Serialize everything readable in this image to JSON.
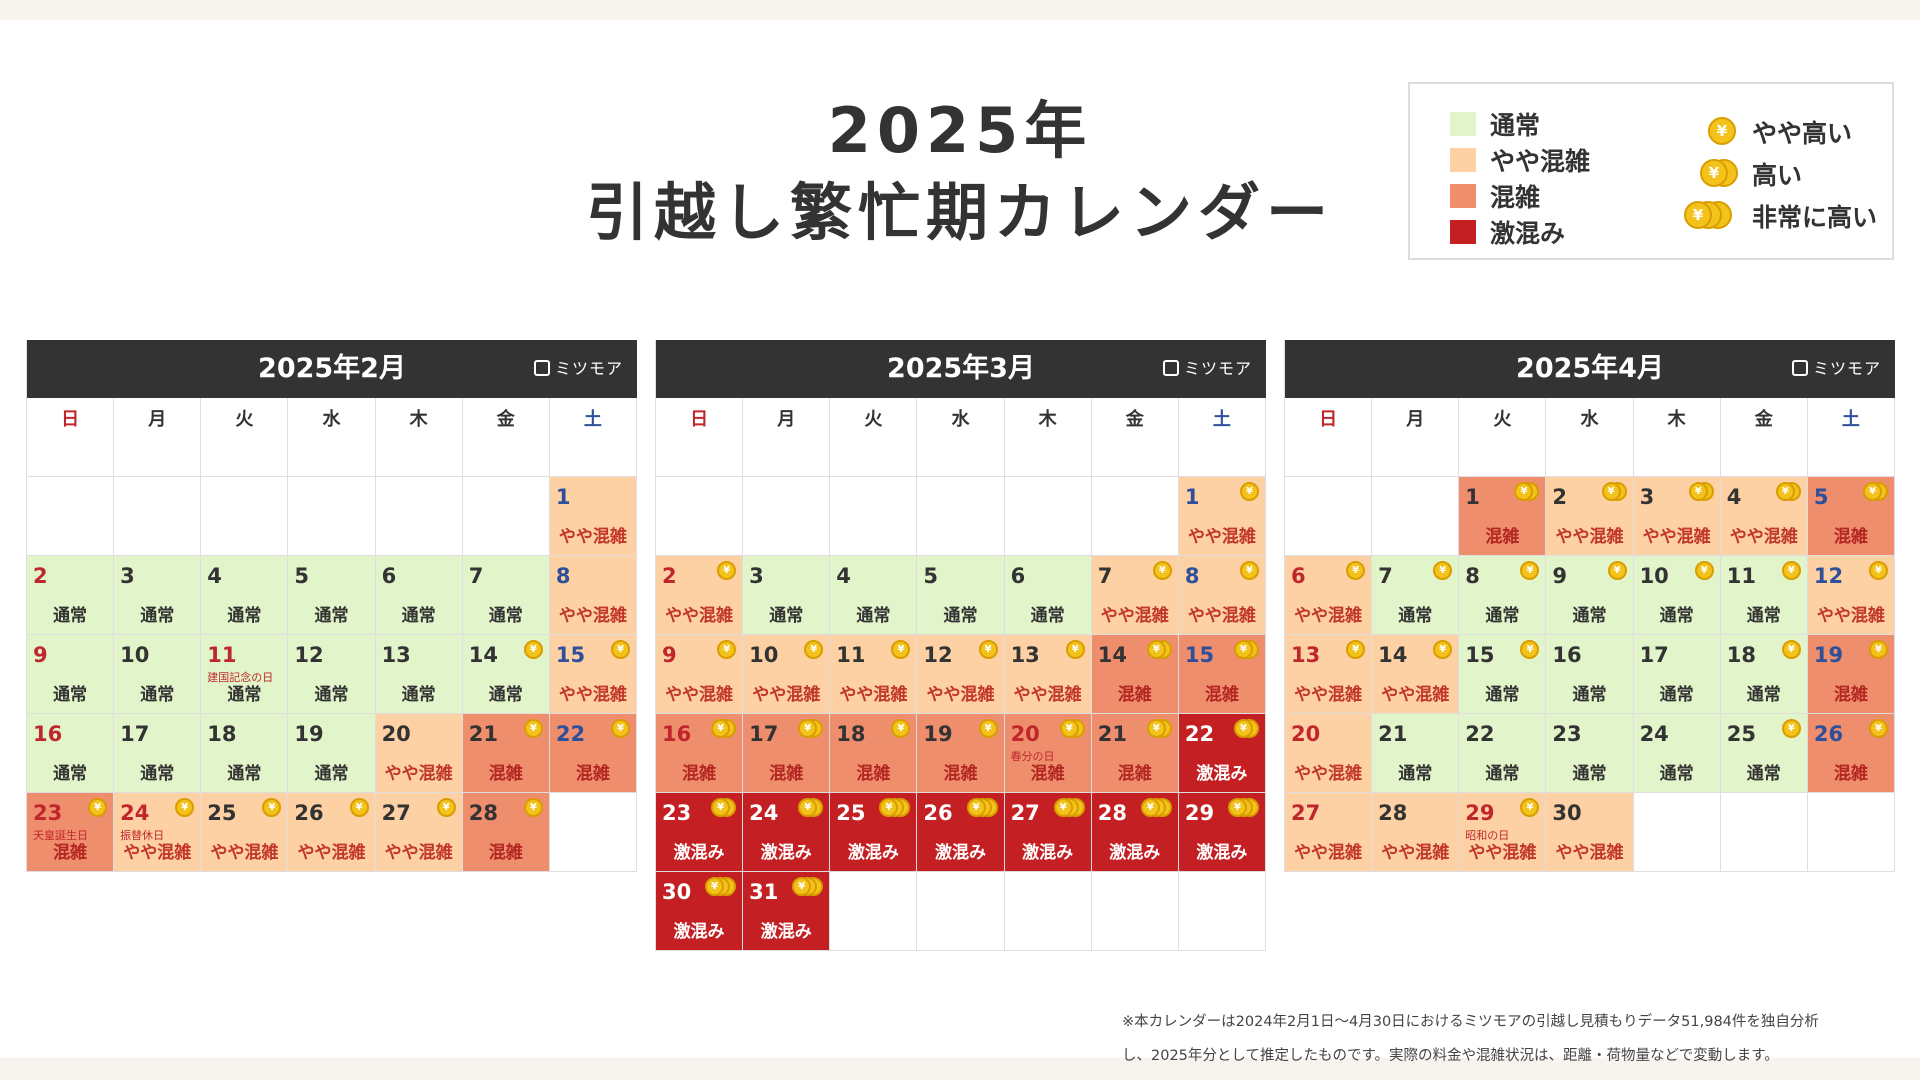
{
  "title": {
    "line1": "2025年",
    "line2": "引越し繁忙期カレンダー"
  },
  "legend": {
    "levels": [
      {
        "label": "通常",
        "color": "#e2f4c9"
      },
      {
        "label": "やや混雑",
        "color": "#fdd1a4"
      },
      {
        "label": "混雑",
        "color": "#ef8e6c"
      },
      {
        "label": "激混み",
        "color": "#c41f22"
      }
    ],
    "prices": [
      {
        "label": "やや高い",
        "coins": 1
      },
      {
        "label": "高い",
        "coins": 2
      },
      {
        "label": "非常に高い",
        "coins": 3
      }
    ],
    "coin_symbol": "¥",
    "coin_color": "#f3c21b"
  },
  "weekdays": [
    "日",
    "月",
    "火",
    "水",
    "木",
    "金",
    "土"
  ],
  "status_labels": {
    "normal": "通常",
    "mild": "やや混雑",
    "busy": "混雑",
    "vbusy": "激混み"
  },
  "calendars": [
    {
      "month": "2025年2月",
      "brand": "ミツモア",
      "first_weekday": 6,
      "weeks": 5,
      "days": [
        {
          "d": 1,
          "s": "mild",
          "c": 0
        },
        {
          "d": 2,
          "s": "normal",
          "c": 0
        },
        {
          "d": 3,
          "s": "normal",
          "c": 0
        },
        {
          "d": 4,
          "s": "normal",
          "c": 0
        },
        {
          "d": 5,
          "s": "normal",
          "c": 0
        },
        {
          "d": 6,
          "s": "normal",
          "c": 0
        },
        {
          "d": 7,
          "s": "normal",
          "c": 0
        },
        {
          "d": 8,
          "s": "mild",
          "c": 0
        },
        {
          "d": 9,
          "s": "normal",
          "c": 0
        },
        {
          "d": 10,
          "s": "normal",
          "c": 0
        },
        {
          "d": 11,
          "s": "normal",
          "c": 0,
          "h": "建国記念の日"
        },
        {
          "d": 12,
          "s": "normal",
          "c": 0
        },
        {
          "d": 13,
          "s": "normal",
          "c": 0
        },
        {
          "d": 14,
          "s": "normal",
          "c": 1
        },
        {
          "d": 15,
          "s": "mild",
          "c": 1
        },
        {
          "d": 16,
          "s": "normal",
          "c": 0
        },
        {
          "d": 17,
          "s": "normal",
          "c": 0
        },
        {
          "d": 18,
          "s": "normal",
          "c": 0
        },
        {
          "d": 19,
          "s": "normal",
          "c": 0
        },
        {
          "d": 20,
          "s": "mild",
          "c": 0
        },
        {
          "d": 21,
          "s": "busy",
          "c": 1
        },
        {
          "d": 22,
          "s": "busy",
          "c": 1
        },
        {
          "d": 23,
          "s": "busy",
          "c": 1,
          "h": "天皇誕生日"
        },
        {
          "d": 24,
          "s": "mild",
          "c": 1,
          "h": "振替休日"
        },
        {
          "d": 25,
          "s": "mild",
          "c": 1
        },
        {
          "d": 26,
          "s": "mild",
          "c": 1
        },
        {
          "d": 27,
          "s": "mild",
          "c": 1
        },
        {
          "d": 28,
          "s": "busy",
          "c": 1
        }
      ]
    },
    {
      "month": "2025年3月",
      "brand": "ミツモア",
      "first_weekday": 6,
      "weeks": 6,
      "days": [
        {
          "d": 1,
          "s": "mild",
          "c": 1
        },
        {
          "d": 2,
          "s": "mild",
          "c": 1
        },
        {
          "d": 3,
          "s": "normal",
          "c": 0
        },
        {
          "d": 4,
          "s": "normal",
          "c": 0
        },
        {
          "d": 5,
          "s": "normal",
          "c": 0
        },
        {
          "d": 6,
          "s": "normal",
          "c": 0
        },
        {
          "d": 7,
          "s": "mild",
          "c": 1
        },
        {
          "d": 8,
          "s": "mild",
          "c": 1
        },
        {
          "d": 9,
          "s": "mild",
          "c": 1
        },
        {
          "d": 10,
          "s": "mild",
          "c": 1
        },
        {
          "d": 11,
          "s": "mild",
          "c": 1
        },
        {
          "d": 12,
          "s": "mild",
          "c": 1
        },
        {
          "d": 13,
          "s": "mild",
          "c": 1
        },
        {
          "d": 14,
          "s": "busy",
          "c": 2
        },
        {
          "d": 15,
          "s": "busy",
          "c": 2
        },
        {
          "d": 16,
          "s": "busy",
          "c": 2
        },
        {
          "d": 17,
          "s": "busy",
          "c": 2
        },
        {
          "d": 18,
          "s": "busy",
          "c": 1
        },
        {
          "d": 19,
          "s": "busy",
          "c": 1
        },
        {
          "d": 20,
          "s": "busy",
          "c": 2,
          "h": "春分の日"
        },
        {
          "d": 21,
          "s": "busy",
          "c": 2
        },
        {
          "d": 22,
          "s": "vbusy",
          "c": 2
        },
        {
          "d": 23,
          "s": "vbusy",
          "c": 2
        },
        {
          "d": 24,
          "s": "vbusy",
          "c": 2
        },
        {
          "d": 25,
          "s": "vbusy",
          "c": 3
        },
        {
          "d": 26,
          "s": "vbusy",
          "c": 3
        },
        {
          "d": 27,
          "s": "vbusy",
          "c": 3
        },
        {
          "d": 28,
          "s": "vbusy",
          "c": 3
        },
        {
          "d": 29,
          "s": "vbusy",
          "c": 3
        },
        {
          "d": 30,
          "s": "vbusy",
          "c": 3
        },
        {
          "d": 31,
          "s": "vbusy",
          "c": 3
        }
      ]
    },
    {
      "month": "2025年4月",
      "brand": "ミツモア",
      "first_weekday": 2,
      "weeks": 5,
      "days": [
        {
          "d": 1,
          "s": "busy",
          "c": 2
        },
        {
          "d": 2,
          "s": "mild",
          "c": 2
        },
        {
          "d": 3,
          "s": "mild",
          "c": 2
        },
        {
          "d": 4,
          "s": "mild",
          "c": 2
        },
        {
          "d": 5,
          "s": "busy",
          "c": 2
        },
        {
          "d": 6,
          "s": "mild",
          "c": 1
        },
        {
          "d": 7,
          "s": "normal",
          "c": 1
        },
        {
          "d": 8,
          "s": "normal",
          "c": 1
        },
        {
          "d": 9,
          "s": "normal",
          "c": 1
        },
        {
          "d": 10,
          "s": "normal",
          "c": 1
        },
        {
          "d": 11,
          "s": "normal",
          "c": 1
        },
        {
          "d": 12,
          "s": "mild",
          "c": 1
        },
        {
          "d": 13,
          "s": "mild",
          "c": 1
        },
        {
          "d": 14,
          "s": "mild",
          "c": 1
        },
        {
          "d": 15,
          "s": "normal",
          "c": 1
        },
        {
          "d": 16,
          "s": "normal",
          "c": 0
        },
        {
          "d": 17,
          "s": "normal",
          "c": 0
        },
        {
          "d": 18,
          "s": "normal",
          "c": 1
        },
        {
          "d": 19,
          "s": "busy",
          "c": 1
        },
        {
          "d": 20,
          "s": "mild",
          "c": 0
        },
        {
          "d": 21,
          "s": "normal",
          "c": 0
        },
        {
          "d": 22,
          "s": "normal",
          "c": 0
        },
        {
          "d": 23,
          "s": "normal",
          "c": 0
        },
        {
          "d": 24,
          "s": "normal",
          "c": 0
        },
        {
          "d": 25,
          "s": "normal",
          "c": 1
        },
        {
          "d": 26,
          "s": "busy",
          "c": 1
        },
        {
          "d": 27,
          "s": "mild",
          "c": 0
        },
        {
          "d": 28,
          "s": "mild",
          "c": 0
        },
        {
          "d": 29,
          "s": "mild",
          "c": 1,
          "h": "昭和の日"
        },
        {
          "d": 30,
          "s": "mild",
          "c": 0
        }
      ]
    }
  ],
  "footnote": {
    "line1": "※本カレンダーは2024年2月1日〜4月30日におけるミツモアの引越し見積もりデータ51,984件を独自分析",
    "line2": "し、2025年分として推定したものです。実際の料金や混雑状況は、距離・荷物量などで変動します。"
  }
}
